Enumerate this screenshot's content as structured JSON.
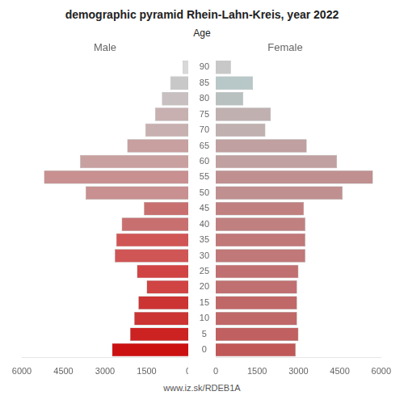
{
  "chart_data": {
    "type": "bar",
    "orientation": "horizontal",
    "title": "demographic pyramid Rhein-Lahn-Kreis, year 2022",
    "ylabel": "Age",
    "annotations": [
      "www.iz.sk/RDEB1A"
    ],
    "categories": [
      0,
      5,
      10,
      15,
      20,
      25,
      30,
      35,
      40,
      45,
      50,
      55,
      60,
      65,
      70,
      75,
      80,
      85,
      90
    ],
    "series": [
      {
        "name": "Male",
        "values": [
          2750,
          2100,
          1950,
          1800,
          1500,
          1850,
          2650,
          2600,
          2400,
          1600,
          3700,
          5200,
          3900,
          2200,
          1550,
          1200,
          950,
          650,
          200
        ],
        "colors": [
          "#cc1111",
          "#cc2222",
          "#cc3333",
          "#cc3333",
          "#d04444",
          "#d04444",
          "#d05555",
          "#d05555",
          "#c87070",
          "#c87070",
          "#c89090",
          "#c89090",
          "#c8a0a0",
          "#c8a0a0",
          "#c8b0b0",
          "#c8b0b0",
          "#c8c0c0",
          "#c8c8c8",
          "#d8d8d8"
        ]
      },
      {
        "name": "Female",
        "values": [
          2900,
          3000,
          2950,
          2950,
          2950,
          3000,
          3250,
          3250,
          3250,
          3200,
          4600,
          5700,
          4400,
          3300,
          1800,
          2000,
          1000,
          1350,
          550
        ],
        "colors": [
          "#c05858",
          "#c06060",
          "#c06868",
          "#c06868",
          "#c07070",
          "#c07070",
          "#c07878",
          "#c07878",
          "#c08080",
          "#c08080",
          "#c09090",
          "#c09090",
          "#c0a0a0",
          "#c0a0a0",
          "#c0b0b0",
          "#c0b0b0",
          "#b8c0c0",
          "#b8c8c8",
          "#c8c8c8"
        ]
      }
    ],
    "xlim": [
      0,
      6000
    ],
    "xticks": [
      0,
      1500,
      3000,
      4500,
      6000
    ],
    "grid": false
  }
}
